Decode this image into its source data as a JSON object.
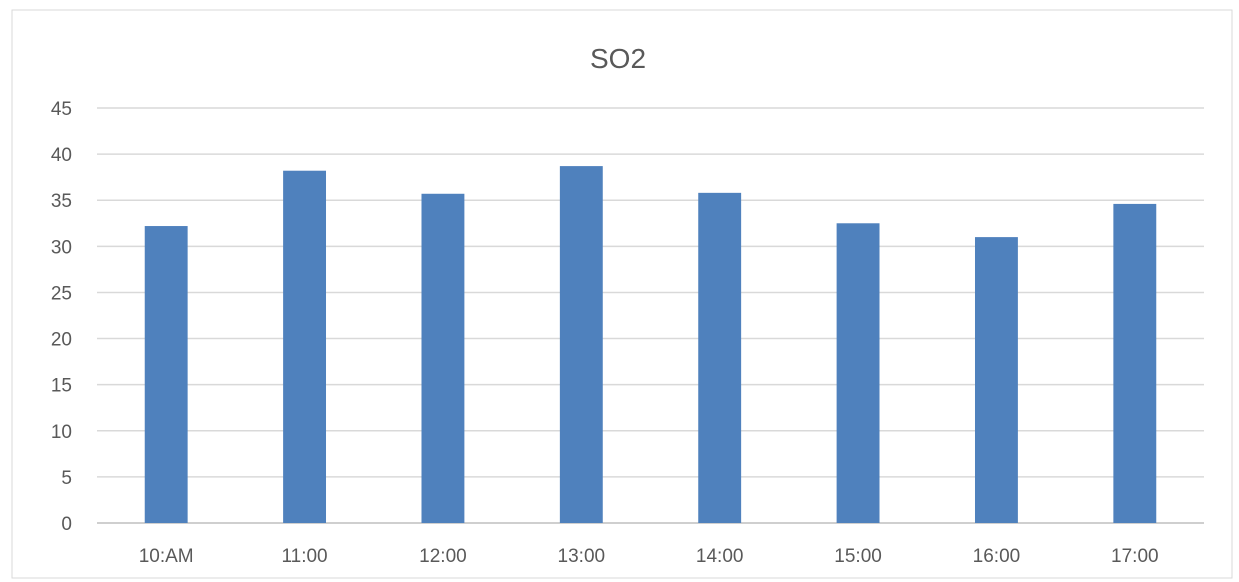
{
  "chart_data": {
    "type": "bar",
    "title": "SO2",
    "categories": [
      "10:AM",
      "11:00",
      "12:00",
      "13:00",
      "14:00",
      "15:00",
      "16:00",
      "17:00"
    ],
    "series": [
      {
        "values": [
          32.2,
          38.2,
          35.7,
          38.7,
          35.8,
          32.5,
          31.0,
          34.6
        ],
        "color": "#4F81BD"
      }
    ],
    "ylim": [
      0,
      45
    ],
    "yticks": [
      "0",
      "5",
      "10",
      "15",
      "20",
      "25",
      "30",
      "35",
      "40",
      "45"
    ],
    "xlabel": "",
    "ylabel": "",
    "grid": true,
    "legend": "none"
  }
}
